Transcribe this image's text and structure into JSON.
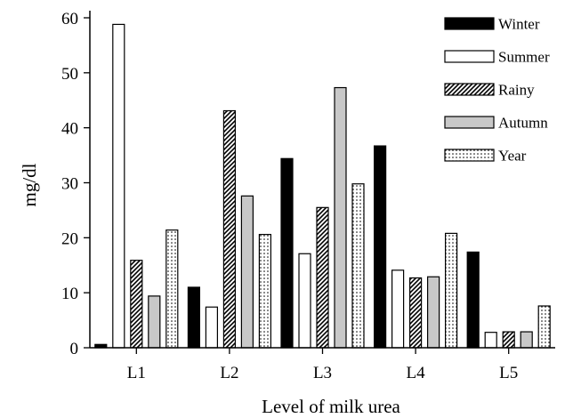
{
  "chart_data": {
    "type": "bar",
    "title": "",
    "xlabel": "Level of milk urea",
    "ylabel": "mg/dl",
    "categories": [
      "L1",
      "L2",
      "L3",
      "L4",
      "L5"
    ],
    "ylim": [
      0,
      60
    ],
    "yticks": [
      0,
      10,
      20,
      30,
      40,
      50,
      60
    ],
    "grid": false,
    "legend_position": "top-right",
    "series": [
      {
        "name": "Winter",
        "values": [
          0.6,
          11.0,
          34.4,
          36.7,
          17.4
        ],
        "fill": "solid-black"
      },
      {
        "name": "Summer",
        "values": [
          58.8,
          7.4,
          17.1,
          14.1,
          2.8
        ],
        "fill": "white"
      },
      {
        "name": "Rainy",
        "values": [
          15.9,
          43.1,
          25.5,
          12.7,
          2.9
        ],
        "fill": "diagonal-hatch"
      },
      {
        "name": "Autumn",
        "values": [
          9.4,
          27.6,
          47.3,
          12.9,
          2.9
        ],
        "fill": "light-gray"
      },
      {
        "name": "Year",
        "values": [
          21.4,
          20.6,
          29.8,
          20.8,
          7.6
        ],
        "fill": "dotted"
      }
    ],
    "colors": {
      "Winter": "#000000",
      "Summer": "#ffffff",
      "Rainy": "#ffffff",
      "Autumn": "#c8c8c8",
      "Year": "#ffffff"
    }
  }
}
